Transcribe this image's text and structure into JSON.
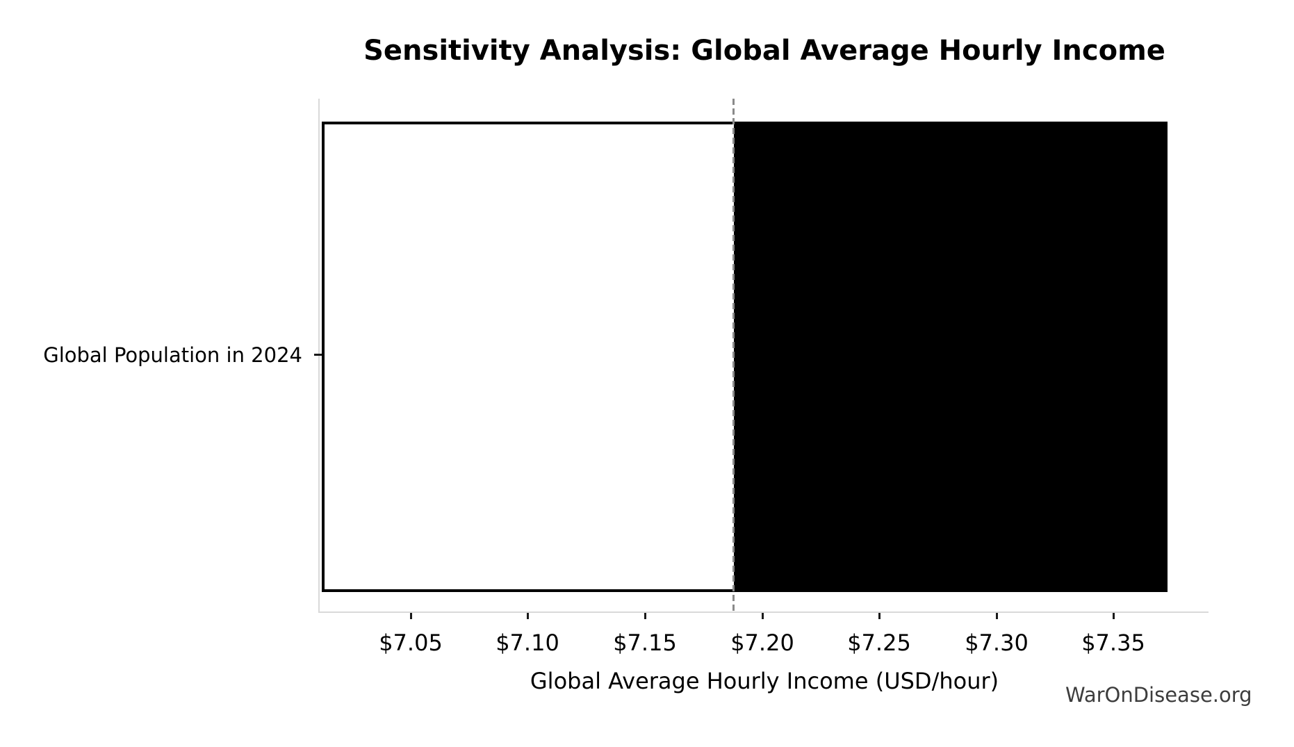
{
  "figure": {
    "title": "Sensitivity Analysis: Global Average Hourly Income",
    "watermark": "WarOnDisease.org"
  },
  "chart_data": {
    "type": "bar",
    "subtype": "sensitivity-tornado",
    "orientation": "horizontal",
    "title": "Sensitivity Analysis: Global Average Hourly Income",
    "xlabel": "Global Average Hourly Income (USD/hour)",
    "ylabel": "",
    "categories": [
      "Global Population in 2024"
    ],
    "bars": [
      {
        "category": "Global Population in 2024",
        "low": 7.012,
        "base": 7.188,
        "high": 7.373,
        "low_segment_fill": "#ffffff",
        "high_segment_fill": "#000000",
        "edge_color": "#000000"
      }
    ],
    "base_line": {
      "value": 7.188,
      "style": "dashed",
      "color": "#8a8a8a"
    },
    "x_ticks": [
      {
        "value": 7.05,
        "label": "$7.05"
      },
      {
        "value": 7.1,
        "label": "$7.10"
      },
      {
        "value": 7.15,
        "label": "$7.15"
      },
      {
        "value": 7.2,
        "label": "$7.20"
      },
      {
        "value": 7.25,
        "label": "$7.25"
      },
      {
        "value": 7.3,
        "label": "$7.30"
      },
      {
        "value": 7.35,
        "label": "$7.35"
      }
    ],
    "xlim": [
      7.011,
      7.391
    ],
    "grid": false,
    "legend": false,
    "colors": {
      "spine": "#d9d9d9",
      "tick": "#1a1a1a",
      "text": "#000000",
      "watermark": "#3d3d3d"
    }
  }
}
